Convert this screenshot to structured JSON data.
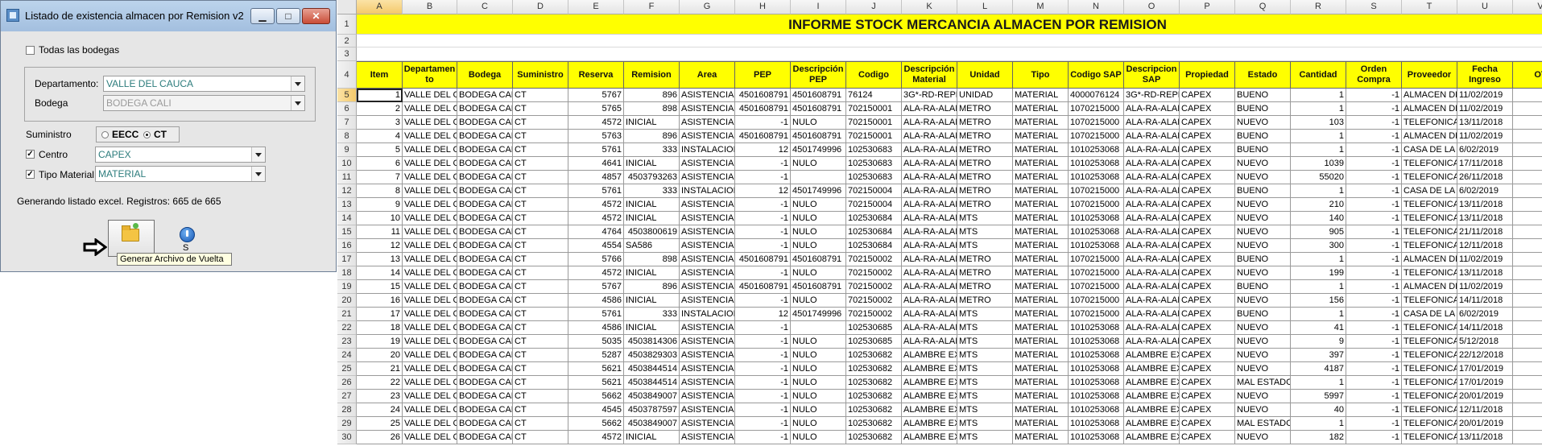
{
  "dialog": {
    "title": "Listado de existencia almacen por Remision v2",
    "buttons": {
      "minimize": "▁",
      "maximize": "□",
      "close": "✕"
    },
    "todas_bodegas_label": "Todas las bodegas",
    "departamento_label": "Departamento:",
    "departamento_value": "VALLE DEL CAUCA",
    "bodega_label": "Bodega",
    "bodega_value": "BODEGA CALI",
    "suministro_label": "Suministro",
    "radio_eecc": "EECC",
    "radio_ct": "CT",
    "centro_label": "Centro",
    "centro_value": "CAPEX",
    "tipo_material_label": "Tipo Material",
    "tipo_material_value": "MATERIAL",
    "status": "Generando listado excel. Registros: 665 de 665",
    "tooltip": "Generar Archivo de Vuelta",
    "exit_label": "S"
  },
  "sheet": {
    "columns": [
      "A",
      "B",
      "C",
      "D",
      "E",
      "F",
      "G",
      "H",
      "I",
      "J",
      "K",
      "L",
      "M",
      "N",
      "O",
      "P",
      "Q",
      "R",
      "S",
      "T",
      "U",
      "V"
    ],
    "selected_column": "A",
    "title": "INFORME STOCK MERCANCIA ALMACEN POR REMISION",
    "headers": [
      "Item",
      "Departamento",
      "Bodega",
      "Suministro",
      "Reserva",
      "Remision",
      "Area",
      "PEP",
      "Descripción PEP",
      "Codigo",
      "Descripción Material",
      "Unidad",
      "Tipo",
      "Codigo SAP",
      "Descripcion SAP",
      "Propiedad",
      "Estado",
      "Cantidad",
      "Orden Compra",
      "Proveedor",
      "Fecha Ingreso",
      "OT"
    ],
    "header_display": [
      "Item",
      "Departamen to",
      "Bodega",
      "Suministro",
      "Reserva",
      "Remision",
      "Area",
      "PEP",
      "Descripción PEP",
      "Codigo",
      "Descripción Material",
      "Unidad",
      "Tipo",
      "Codigo SAP",
      "Descripcion SAP",
      "Propiedad",
      "Estado",
      "Cantidad",
      "Orden Compra",
      "Proveedor",
      "Fecha Ingreso",
      "OT"
    ],
    "rows": [
      {
        "row": "5",
        "cells": [
          "1",
          "VALLE DEL CA",
          "BODEGA CAL",
          "CT",
          "5767",
          "896",
          "ASISTENCIA T",
          "4501608791",
          "4501608791",
          "76124",
          "3G*-RD-REPE",
          "UNIDAD",
          "MATERIAL",
          "4000076124",
          "3G*-RD-REPE",
          "CAPEX",
          "BUENO",
          "1",
          "-1",
          "ALMACEN DE",
          "11/02/2019",
          ""
        ]
      },
      {
        "row": "6",
        "cells": [
          "2",
          "VALLE DEL CA",
          "BODEGA CAL",
          "CT",
          "5765",
          "898",
          "ASISTENCIA T",
          "4501608791",
          "4501608791",
          "702150001",
          "ALA-RA-ALAM",
          "METRO",
          "MATERIAL",
          "1070215000",
          "ALA-RA-ALAM",
          "CAPEX",
          "BUENO",
          "1",
          "-1",
          "ALMACEN DE",
          "11/02/2019",
          ""
        ]
      },
      {
        "row": "7",
        "cells": [
          "3",
          "VALLE DEL CA",
          "BODEGA CAL",
          "CT",
          "4572",
          "INICIAL",
          "ASISTENCIA T",
          "-1",
          "NULO",
          "702150001",
          "ALA-RA-ALAM",
          "METRO",
          "MATERIAL",
          "1070215000",
          "ALA-RA-ALAM",
          "CAPEX",
          "NUEVO",
          "103",
          "-1",
          "TELEFONICA",
          "13/11/2018",
          ""
        ]
      },
      {
        "row": "8",
        "cells": [
          "4",
          "VALLE DEL CA",
          "BODEGA CAL",
          "CT",
          "5763",
          "896",
          "ASISTENCIA T",
          "4501608791",
          "4501608791",
          "702150001",
          "ALA-RA-ALAM",
          "METRO",
          "MATERIAL",
          "1070215000",
          "ALA-RA-ALAM",
          "CAPEX",
          "BUENO",
          "1",
          "-1",
          "ALMACEN DE",
          "11/02/2019",
          ""
        ]
      },
      {
        "row": "9",
        "cells": [
          "5",
          "VALLE DEL CA",
          "BODEGA CAL",
          "CT",
          "5761",
          "333",
          "INSTALACION",
          "12",
          "4501749996",
          "102530683",
          "ALA-RA-ALAM",
          "METRO",
          "MATERIAL",
          "1010253068",
          "ALA-RA-ALAM",
          "CAPEX",
          "BUENO",
          "1",
          "-1",
          "CASA DE LA T",
          "6/02/2019",
          ""
        ]
      },
      {
        "row": "10",
        "cells": [
          "6",
          "VALLE DEL CA",
          "BODEGA CAL",
          "CT",
          "4641",
          "INICIAL",
          "ASISTENCIA T",
          "-1",
          "NULO",
          "102530683",
          "ALA-RA-ALAM",
          "METRO",
          "MATERIAL",
          "1010253068",
          "ALA-RA-ALAM",
          "CAPEX",
          "NUEVO",
          "1039",
          "-1",
          "TELEFONICA",
          "17/11/2018",
          ""
        ]
      },
      {
        "row": "11",
        "cells": [
          "7",
          "VALLE DEL CA",
          "BODEGA CAL",
          "CT",
          "4857",
          "4503793263",
          "ASISTENCIA T",
          "-1",
          "",
          "102530683",
          "ALA-RA-ALAM",
          "METRO",
          "MATERIAL",
          "1010253068",
          "ALA-RA-ALAM",
          "CAPEX",
          "NUEVO",
          "55020",
          "-1",
          "TELEFONICA",
          "26/11/2018",
          ""
        ]
      },
      {
        "row": "12",
        "cells": [
          "8",
          "VALLE DEL CA",
          "BODEGA CAL",
          "CT",
          "5761",
          "333",
          "INSTALACION",
          "12",
          "4501749996",
          "702150004",
          "ALA-RA-ALAM",
          "METRO",
          "MATERIAL",
          "1070215000",
          "ALA-RA-ALAM",
          "CAPEX",
          "BUENO",
          "1",
          "-1",
          "CASA DE LA T",
          "6/02/2019",
          ""
        ]
      },
      {
        "row": "13",
        "cells": [
          "9",
          "VALLE DEL CA",
          "BODEGA CAL",
          "CT",
          "4572",
          "INICIAL",
          "ASISTENCIA T",
          "-1",
          "NULO",
          "702150004",
          "ALA-RA-ALAM",
          "METRO",
          "MATERIAL",
          "1070215000",
          "ALA-RA-ALAM",
          "CAPEX",
          "NUEVO",
          "210",
          "-1",
          "TELEFONICA",
          "13/11/2018",
          ""
        ]
      },
      {
        "row": "14",
        "cells": [
          "10",
          "VALLE DEL CA",
          "BODEGA CAL",
          "CT",
          "4572",
          "INICIAL",
          "ASISTENCIA T",
          "-1",
          "NULO",
          "102530684",
          "ALA-RA-ALAM",
          "MTS",
          "MATERIAL",
          "1010253068",
          "ALA-RA-ALAM",
          "CAPEX",
          "NUEVO",
          "140",
          "-1",
          "TELEFONICA",
          "13/11/2018",
          ""
        ]
      },
      {
        "row": "15",
        "cells": [
          "11",
          "VALLE DEL CA",
          "BODEGA CAL",
          "CT",
          "4764",
          "4503800619",
          "ASISTENCIA T",
          "-1",
          "NULO",
          "102530684",
          "ALA-RA-ALAM",
          "MTS",
          "MATERIAL",
          "1010253068",
          "ALA-RA-ALAM",
          "CAPEX",
          "NUEVO",
          "905",
          "-1",
          "TELEFONICA",
          "21/11/2018",
          ""
        ]
      },
      {
        "row": "16",
        "cells": [
          "12",
          "VALLE DEL CA",
          "BODEGA CAL",
          "CT",
          "4554",
          "SA586",
          "ASISTENCIA T",
          "-1",
          "NULO",
          "102530684",
          "ALA-RA-ALAM",
          "MTS",
          "MATERIAL",
          "1010253068",
          "ALA-RA-ALAM",
          "CAPEX",
          "NUEVO",
          "300",
          "-1",
          "TELEFONICA",
          "12/11/2018",
          ""
        ]
      },
      {
        "row": "17",
        "cells": [
          "13",
          "VALLE DEL CA",
          "BODEGA CAL",
          "CT",
          "5766",
          "898",
          "ASISTENCIA T",
          "4501608791",
          "4501608791",
          "702150002",
          "ALA-RA-ALAM",
          "METRO",
          "MATERIAL",
          "1070215000",
          "ALA-RA-ALAM",
          "CAPEX",
          "BUENO",
          "1",
          "-1",
          "ALMACEN DE",
          "11/02/2019",
          ""
        ]
      },
      {
        "row": "18",
        "cells": [
          "14",
          "VALLE DEL CA",
          "BODEGA CAL",
          "CT",
          "4572",
          "INICIAL",
          "ASISTENCIA T",
          "-1",
          "NULO",
          "702150002",
          "ALA-RA-ALAM",
          "METRO",
          "MATERIAL",
          "1070215000",
          "ALA-RA-ALAM",
          "CAPEX",
          "NUEVO",
          "199",
          "-1",
          "TELEFONICA",
          "13/11/2018",
          ""
        ]
      },
      {
        "row": "19",
        "cells": [
          "15",
          "VALLE DEL CA",
          "BODEGA CAL",
          "CT",
          "5767",
          "896",
          "ASISTENCIA T",
          "4501608791",
          "4501608791",
          "702150002",
          "ALA-RA-ALAM",
          "METRO",
          "MATERIAL",
          "1070215000",
          "ALA-RA-ALAM",
          "CAPEX",
          "BUENO",
          "1",
          "-1",
          "ALMACEN DE",
          "11/02/2019",
          ""
        ]
      },
      {
        "row": "20",
        "cells": [
          "16",
          "VALLE DEL CA",
          "BODEGA CAL",
          "CT",
          "4586",
          "INICIAL",
          "ASISTENCIA T",
          "-1",
          "NULO",
          "702150002",
          "ALA-RA-ALAM",
          "METRO",
          "MATERIAL",
          "1070215000",
          "ALA-RA-ALAM",
          "CAPEX",
          "NUEVO",
          "156",
          "-1",
          "TELEFONICA",
          "14/11/2018",
          ""
        ]
      },
      {
        "row": "21",
        "cells": [
          "17",
          "VALLE DEL CA",
          "BODEGA CAL",
          "CT",
          "5761",
          "333",
          "INSTALACION",
          "12",
          "4501749996",
          "702150002",
          "ALA-RA-ALAM",
          "MTS",
          "MATERIAL",
          "1070215000",
          "ALA-RA-ALAM",
          "CAPEX",
          "BUENO",
          "1",
          "-1",
          "CASA DE LA T",
          "6/02/2019",
          ""
        ]
      },
      {
        "row": "22",
        "cells": [
          "18",
          "VALLE DEL CA",
          "BODEGA CAL",
          "CT",
          "4586",
          "INICIAL",
          "ASISTENCIA T",
          "-1",
          "",
          "102530685",
          "ALA-RA-ALAM",
          "MTS",
          "MATERIAL",
          "1010253068",
          "ALA-RA-ALAM",
          "CAPEX",
          "NUEVO",
          "41",
          "-1",
          "TELEFONICA",
          "14/11/2018",
          ""
        ]
      },
      {
        "row": "23",
        "cells": [
          "19",
          "VALLE DEL CA",
          "BODEGA CAL",
          "CT",
          "5035",
          "4503814306",
          "ASISTENCIA T",
          "-1",
          "NULO",
          "102530685",
          "ALA-RA-ALAM",
          "MTS",
          "MATERIAL",
          "1010253068",
          "ALA-RA-ALAM",
          "CAPEX",
          "NUEVO",
          "9",
          "-1",
          "TELEFONICA",
          "5/12/2018",
          ""
        ]
      },
      {
        "row": "24",
        "cells": [
          "20",
          "VALLE DEL CA",
          "BODEGA CAL",
          "CT",
          "5287",
          "4503829303",
          "ASISTENCIA T",
          "-1",
          "NULO",
          "102530682",
          "ALAMBRE EX",
          "MTS",
          "MATERIAL",
          "1010253068",
          "ALAMBRE EX",
          "CAPEX",
          "NUEVO",
          "397",
          "-1",
          "TELEFONICA",
          "22/12/2018",
          ""
        ]
      },
      {
        "row": "25",
        "cells": [
          "21",
          "VALLE DEL CA",
          "BODEGA CAL",
          "CT",
          "5621",
          "4503844514",
          "ASISTENCIA T",
          "-1",
          "NULO",
          "102530682",
          "ALAMBRE EX",
          "MTS",
          "MATERIAL",
          "1010253068",
          "ALAMBRE EX",
          "CAPEX",
          "NUEVO",
          "4187",
          "-1",
          "TELEFONICA",
          "17/01/2019",
          ""
        ]
      },
      {
        "row": "26",
        "cells": [
          "22",
          "VALLE DEL CA",
          "BODEGA CAL",
          "CT",
          "5621",
          "4503844514",
          "ASISTENCIA T",
          "-1",
          "NULO",
          "102530682",
          "ALAMBRE EX",
          "MTS",
          "MATERIAL",
          "1010253068",
          "ALAMBRE EX",
          "CAPEX",
          "MAL ESTADO",
          "1",
          "-1",
          "TELEFONICA",
          "17/01/2019",
          ""
        ]
      },
      {
        "row": "27",
        "cells": [
          "23",
          "VALLE DEL CA",
          "BODEGA CAL",
          "CT",
          "5662",
          "4503849007",
          "ASISTENCIA T",
          "-1",
          "NULO",
          "102530682",
          "ALAMBRE EX",
          "MTS",
          "MATERIAL",
          "1010253068",
          "ALAMBRE EX",
          "CAPEX",
          "NUEVO",
          "5997",
          "-1",
          "TELEFONICA",
          "20/01/2019",
          ""
        ]
      },
      {
        "row": "28",
        "cells": [
          "24",
          "VALLE DEL CA",
          "BODEGA CAL",
          "CT",
          "4545",
          "4503787597",
          "ASISTENCIA T",
          "-1",
          "NULO",
          "102530682",
          "ALAMBRE EX",
          "MTS",
          "MATERIAL",
          "1010253068",
          "ALAMBRE EX",
          "CAPEX",
          "NUEVO",
          "40",
          "-1",
          "TELEFONICA",
          "12/11/2018",
          ""
        ]
      },
      {
        "row": "29",
        "cells": [
          "25",
          "VALLE DEL CA",
          "BODEGA CAL",
          "CT",
          "5662",
          "4503849007",
          "ASISTENCIA T",
          "-1",
          "NULO",
          "102530682",
          "ALAMBRE EX",
          "MTS",
          "MATERIAL",
          "1010253068",
          "ALAMBRE EX",
          "CAPEX",
          "MAL ESTADO",
          "1",
          "-1",
          "TELEFONICA",
          "20/01/2019",
          ""
        ]
      },
      {
        "row": "30",
        "cells": [
          "26",
          "VALLE DEL CA",
          "BODEGA CAL",
          "CT",
          "4572",
          "INICIAL",
          "ASISTENCIA T",
          "-1",
          "NULO",
          "102530682",
          "ALAMBRE EX",
          "MTS",
          "MATERIAL",
          "1010253068",
          "ALAMBRE EX",
          "CAPEX",
          "NUEVO",
          "182",
          "-1",
          "TELEFONICA",
          "13/11/2018",
          ""
        ]
      }
    ],
    "numeric_columns": [
      0,
      4,
      7,
      17,
      18
    ],
    "right_align_columns": [
      0,
      4,
      5,
      7,
      17,
      18
    ]
  }
}
